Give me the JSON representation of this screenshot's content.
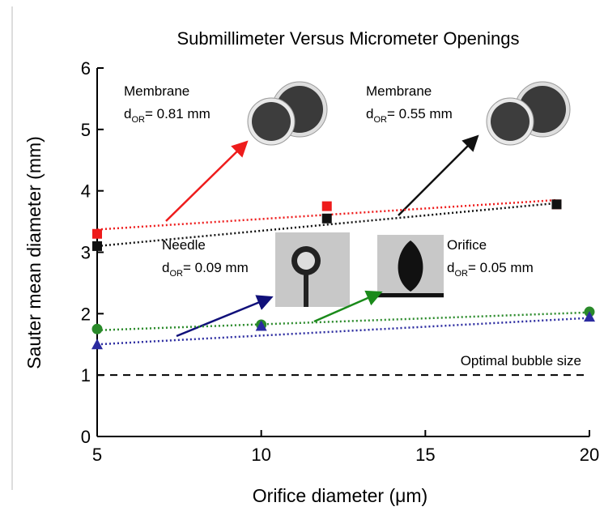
{
  "chart_data": {
    "type": "scatter",
    "title": "Submillimeter Versus Micrometer Openings",
    "x_label": "Orifice diameter (μm)",
    "y_label": "Sauter mean diameter (mm)",
    "xlim": [
      5,
      20
    ],
    "xticks": [
      5,
      10,
      15,
      20
    ],
    "ylim": [
      0,
      6
    ],
    "yticks": [
      0,
      1,
      2,
      3,
      4,
      5,
      6
    ],
    "series": [
      {
        "color": "#ee1c1c",
        "marker": "square",
        "x": [
          5,
          12,
          19
        ],
        "values": [
          3.3,
          3.75,
          3.78
        ]
      },
      {
        "color": "#111111",
        "marker": "square",
        "x": [
          5,
          12,
          19
        ],
        "values": [
          3.1,
          3.55,
          3.78
        ]
      },
      {
        "color": "#2a8a2a",
        "marker": "circle",
        "x": [
          5,
          10,
          20
        ],
        "values": [
          1.75,
          1.82,
          2.03
        ]
      },
      {
        "color": "#2b2ba0",
        "marker": "triangle",
        "x": [
          5,
          10,
          20
        ],
        "values": [
          1.5,
          1.8,
          1.95
        ]
      }
    ],
    "trendlines": [
      {
        "color": "#ee1c1c",
        "x": [
          5,
          19
        ],
        "values": [
          3.37,
          3.85
        ]
      },
      {
        "color": "#111111",
        "x": [
          5,
          19
        ],
        "values": [
          3.1,
          3.8
        ]
      },
      {
        "color": "#2a8a2a",
        "x": [
          5,
          20
        ],
        "values": [
          1.73,
          2.02
        ]
      },
      {
        "color": "#2b2ba0",
        "x": [
          5,
          20
        ],
        "values": [
          1.5,
          1.93
        ]
      }
    ],
    "reference_line": {
      "value": 1,
      "label": "Optimal bubble size"
    },
    "annotations": [
      {
        "title": "Membrane",
        "d": "d",
        "sub": "OR",
        "rest": "= 0.81 mm"
      },
      {
        "title": "Membrane",
        "d": "d",
        "sub": "OR",
        "rest": "= 0.55 mm"
      },
      {
        "title": "Needle",
        "d": "d",
        "sub": "OR",
        "rest": "= 0.09 mm"
      },
      {
        "title": "Orifice",
        "d": "d",
        "sub": "OR",
        "rest": "= 0.05 mm"
      }
    ]
  }
}
